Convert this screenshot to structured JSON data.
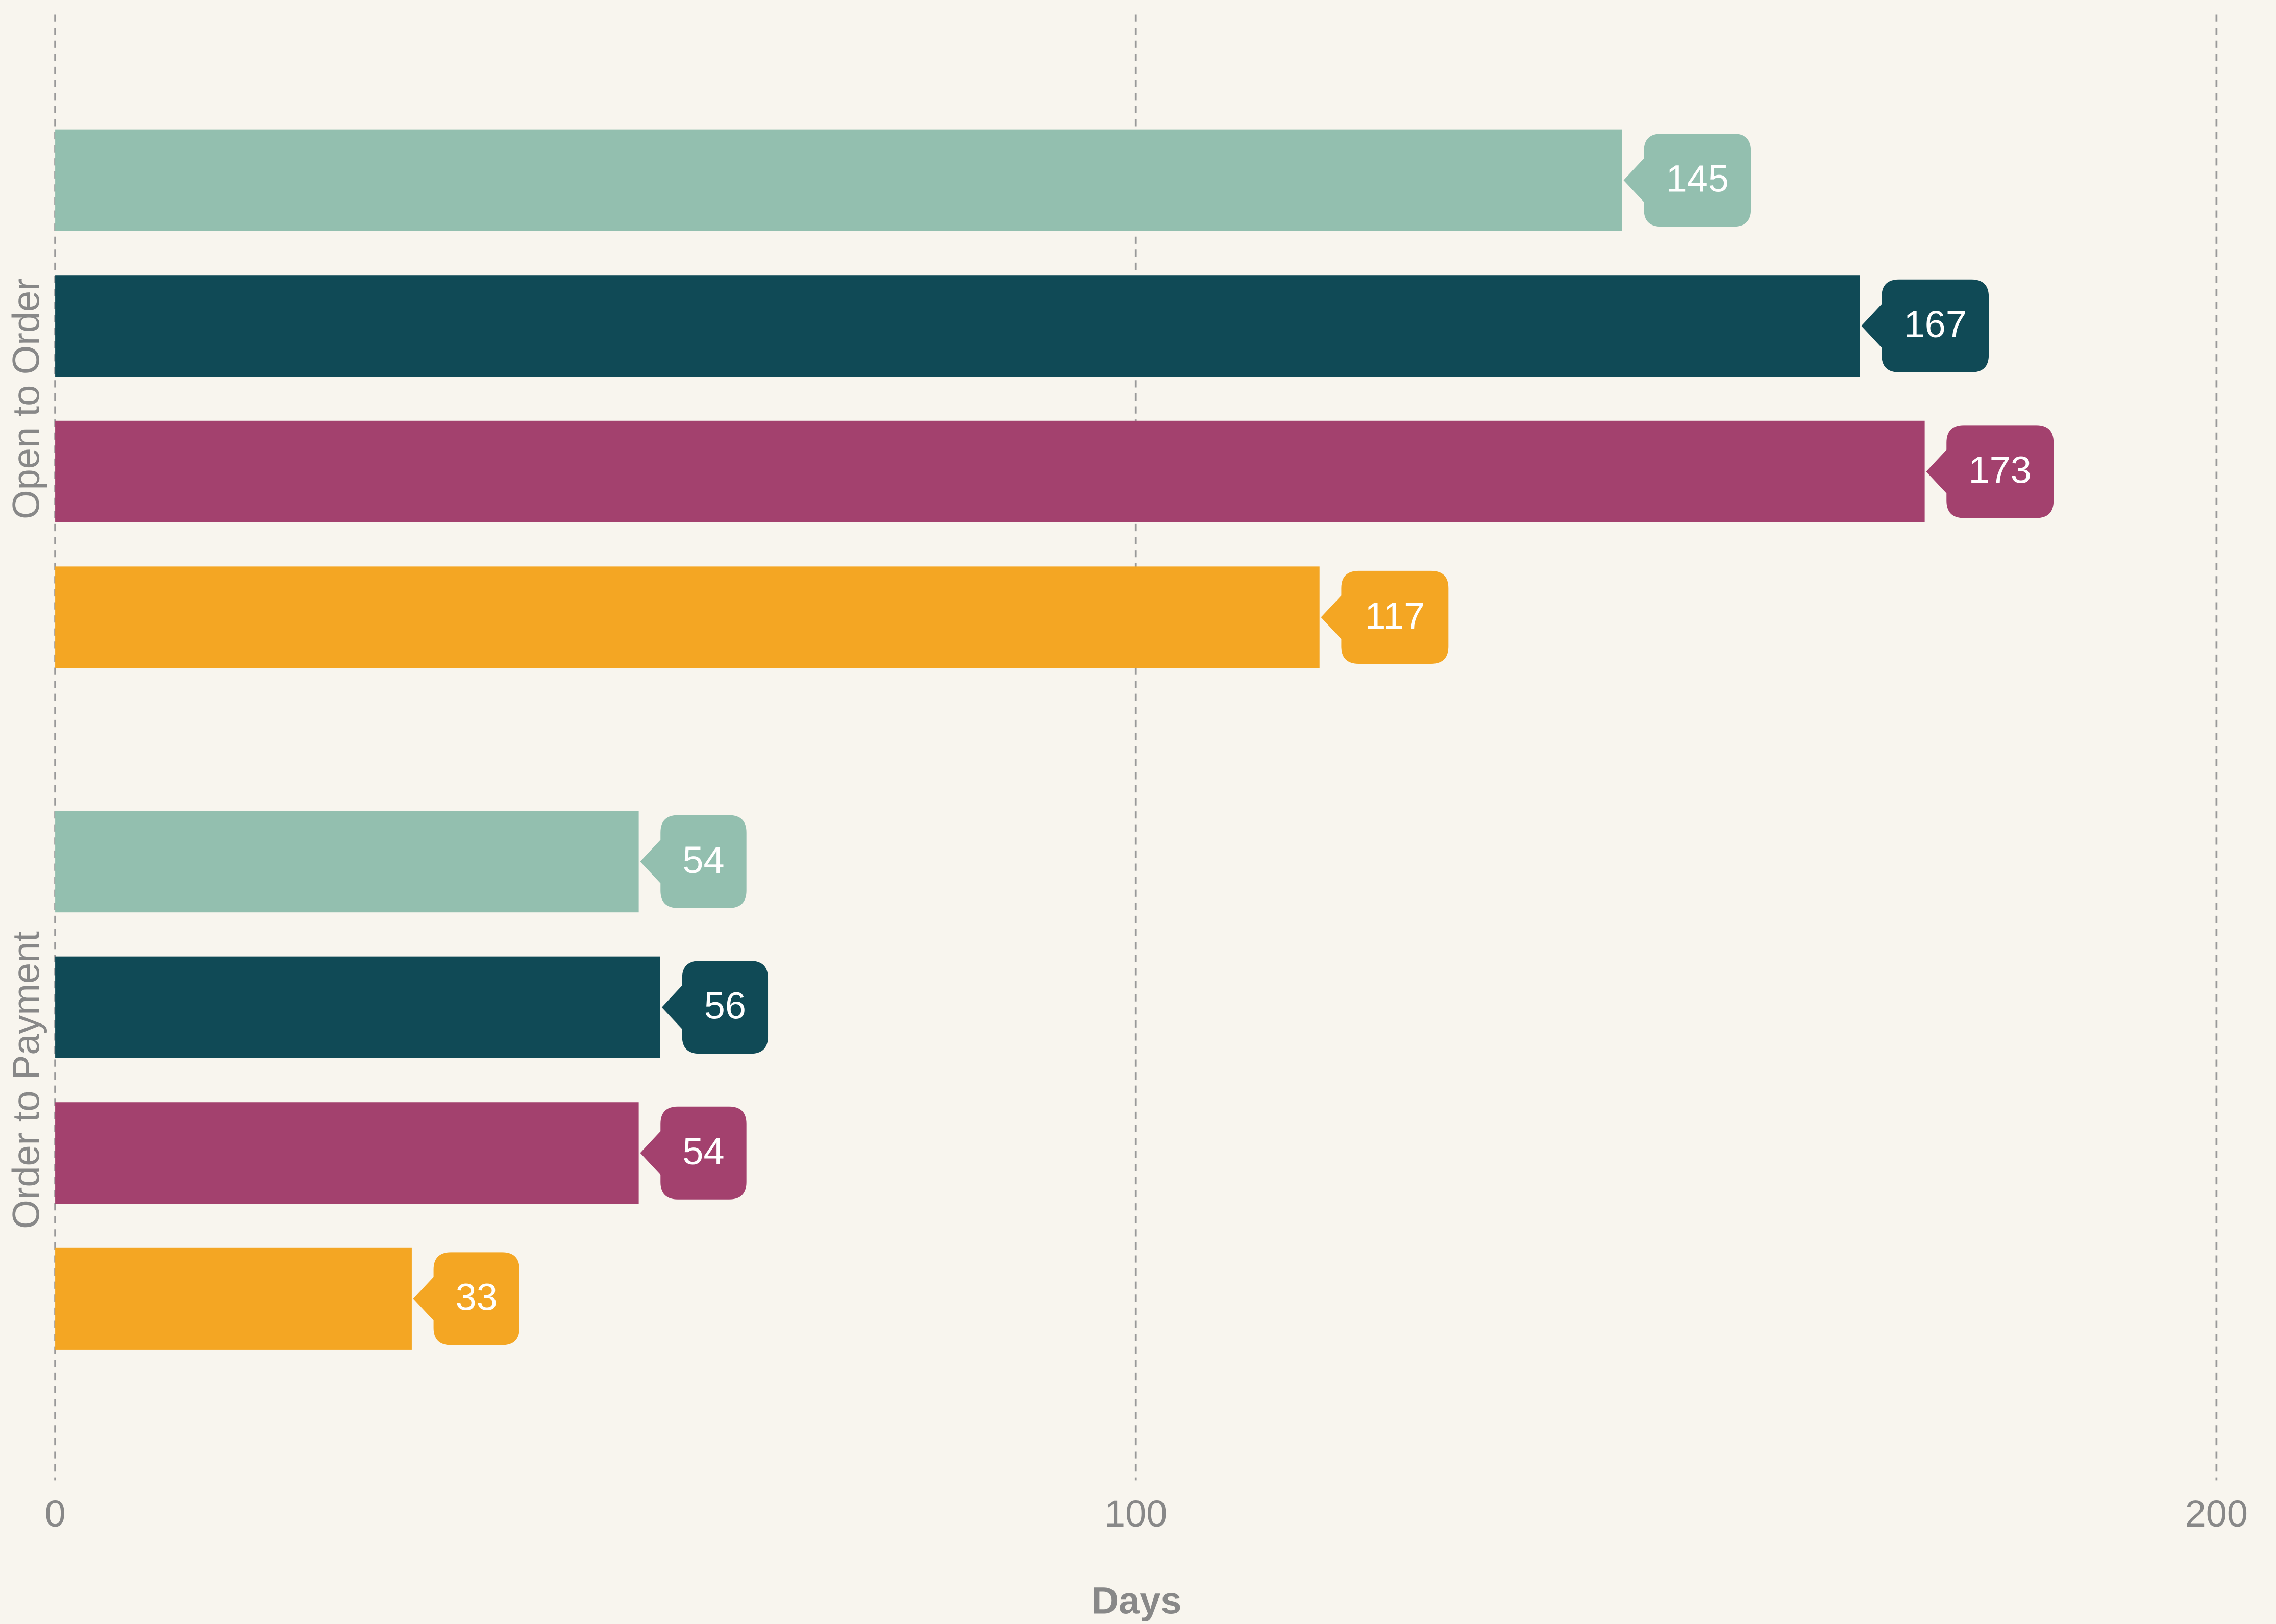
{
  "chart_data": {
    "type": "bar",
    "orientation": "horizontal",
    "categories": [
      "Open to Order",
      "Order to Payment"
    ],
    "series": [
      {
        "color": "#93bfaf",
        "values": [
          145,
          54
        ]
      },
      {
        "color": "#104a56",
        "values": [
          167,
          56
        ]
      },
      {
        "color": "#a3416e",
        "values": [
          173,
          54
        ]
      },
      {
        "color": "#f4a623",
        "values": [
          117,
          33
        ]
      }
    ],
    "xlabel": "Days",
    "xlim": [
      0,
      200
    ],
    "xticks": [
      0,
      100,
      200
    ],
    "grid": true
  }
}
